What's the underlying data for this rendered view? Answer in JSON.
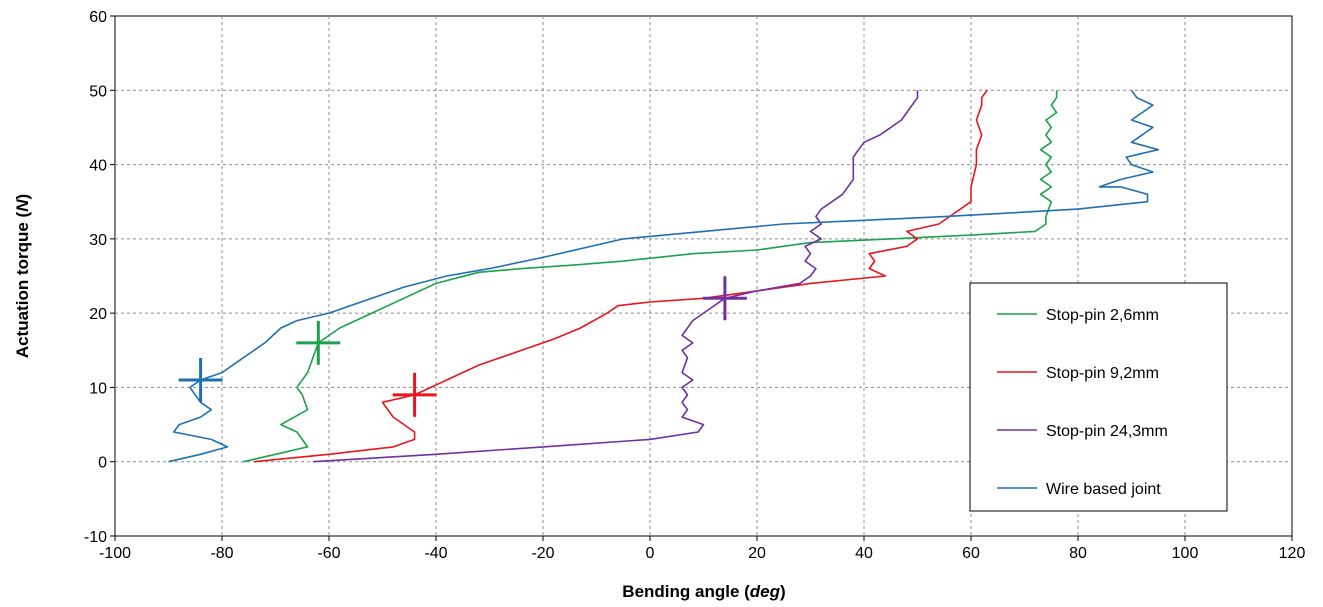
{
  "chart_data": {
    "type": "line",
    "xlabel_main": "Bending angle (",
    "xlabel_unit": "deg",
    "xlabel_close": ")",
    "ylabel_main": "Actuation torque (",
    "ylabel_unit": "N",
    "ylabel_close": ")",
    "xlim": [
      -100,
      120
    ],
    "ylim": [
      -10,
      60
    ],
    "x_ticks": [
      -100,
      -80,
      -60,
      -40,
      -20,
      0,
      20,
      40,
      60,
      80,
      100,
      120
    ],
    "y_ticks": [
      -10,
      0,
      10,
      20,
      30,
      40,
      50,
      60
    ],
    "grid": true,
    "legend_position": "right",
    "series": [
      {
        "name": "Stop-pin 2,6mm",
        "color": "#1aa34a",
        "marker": [
          -62,
          16
        ],
        "points": [
          [
            -76,
            0
          ],
          [
            -70,
            1
          ],
          [
            -64,
            2
          ],
          [
            -66,
            4
          ],
          [
            -69,
            5
          ],
          [
            -64,
            7
          ],
          [
            -65,
            9
          ],
          [
            -66,
            10
          ],
          [
            -64,
            12
          ],
          [
            -63,
            14
          ],
          [
            -62,
            16
          ],
          [
            -58,
            18
          ],
          [
            -52,
            20
          ],
          [
            -46,
            22
          ],
          [
            -40,
            24
          ],
          [
            -32,
            25.5
          ],
          [
            -24,
            26
          ],
          [
            -14,
            26.5
          ],
          [
            -5,
            27
          ],
          [
            8,
            28
          ],
          [
            20,
            28.5
          ],
          [
            30,
            29.5
          ],
          [
            45,
            30
          ],
          [
            60,
            30.5
          ],
          [
            72,
            31
          ],
          [
            74,
            32
          ],
          [
            74,
            33
          ],
          [
            75,
            35
          ],
          [
            73,
            36
          ],
          [
            75,
            37
          ],
          [
            73,
            38
          ],
          [
            75,
            39
          ],
          [
            74,
            40
          ],
          [
            75,
            41
          ],
          [
            73,
            42
          ],
          [
            75,
            43
          ],
          [
            74,
            44
          ],
          [
            75,
            45
          ],
          [
            74,
            46
          ],
          [
            76,
            47
          ],
          [
            75,
            48
          ],
          [
            76,
            49
          ],
          [
            76,
            50
          ]
        ]
      },
      {
        "name": "Stop-pin 9,2mm",
        "color": "#e8161a",
        "marker": [
          -44,
          9
        ],
        "points": [
          [
            -74,
            0
          ],
          [
            -60,
            1
          ],
          [
            -48,
            2
          ],
          [
            -44,
            3
          ],
          [
            -44,
            4
          ],
          [
            -48,
            6
          ],
          [
            -50,
            8
          ],
          [
            -44,
            9
          ],
          [
            -38,
            11
          ],
          [
            -32,
            13
          ],
          [
            -24,
            15
          ],
          [
            -18,
            16.5
          ],
          [
            -13,
            18
          ],
          [
            -8,
            20
          ],
          [
            -6,
            21
          ],
          [
            0,
            21.5
          ],
          [
            10,
            22
          ],
          [
            20,
            23
          ],
          [
            30,
            24
          ],
          [
            44,
            25
          ],
          [
            41,
            26
          ],
          [
            42,
            27
          ],
          [
            41,
            28
          ],
          [
            48,
            29
          ],
          [
            50,
            30
          ],
          [
            48,
            31
          ],
          [
            54,
            32
          ],
          [
            58,
            34
          ],
          [
            60,
            35
          ],
          [
            60,
            37
          ],
          [
            61,
            40
          ],
          [
            61,
            42
          ],
          [
            62,
            44
          ],
          [
            61,
            46
          ],
          [
            62,
            48
          ],
          [
            62,
            49
          ],
          [
            63,
            50
          ]
        ]
      },
      {
        "name": "Stop-pin 24,3mm",
        "color": "#7030a0",
        "marker": [
          14,
          22
        ],
        "points": [
          [
            -63,
            0
          ],
          [
            -40,
            1
          ],
          [
            -20,
            2
          ],
          [
            0,
            3
          ],
          [
            9,
            4
          ],
          [
            10,
            5
          ],
          [
            6,
            6
          ],
          [
            7,
            7
          ],
          [
            6,
            8
          ],
          [
            7,
            9
          ],
          [
            6,
            10
          ],
          [
            8,
            11
          ],
          [
            6,
            12
          ],
          [
            7,
            14
          ],
          [
            6,
            15
          ],
          [
            8,
            16
          ],
          [
            6,
            17
          ],
          [
            8,
            19
          ],
          [
            10,
            20
          ],
          [
            14,
            22
          ],
          [
            20,
            23
          ],
          [
            28,
            24
          ],
          [
            30,
            25
          ],
          [
            31,
            26
          ],
          [
            29,
            27
          ],
          [
            30,
            28
          ],
          [
            29,
            29
          ],
          [
            32,
            30
          ],
          [
            30,
            31
          ],
          [
            32,
            32
          ],
          [
            31,
            33
          ],
          [
            32,
            34
          ],
          [
            34,
            35
          ],
          [
            36,
            36
          ],
          [
            38,
            38
          ],
          [
            38,
            40
          ],
          [
            38,
            41
          ],
          [
            39,
            42
          ],
          [
            40,
            43
          ],
          [
            43,
            44
          ],
          [
            47,
            46
          ],
          [
            49,
            48
          ],
          [
            50,
            49
          ],
          [
            50,
            50
          ]
        ]
      },
      {
        "name": "Wire based joint",
        "color": "#1f6fb4",
        "marker": [
          -84,
          11
        ],
        "points": [
          [
            -90,
            0
          ],
          [
            -84,
            1
          ],
          [
            -79,
            2
          ],
          [
            -82,
            3
          ],
          [
            -89,
            4
          ],
          [
            -88,
            5
          ],
          [
            -84,
            6
          ],
          [
            -82,
            7
          ],
          [
            -84,
            8
          ],
          [
            -86,
            10
          ],
          [
            -84,
            11
          ],
          [
            -80,
            12
          ],
          [
            -76,
            14
          ],
          [
            -72,
            16
          ],
          [
            -69,
            18
          ],
          [
            -66,
            19
          ],
          [
            -60,
            20
          ],
          [
            -52,
            22
          ],
          [
            -46,
            23.5
          ],
          [
            -38,
            25
          ],
          [
            -30,
            26
          ],
          [
            -20,
            27.5
          ],
          [
            -5,
            30
          ],
          [
            10,
            31
          ],
          [
            25,
            32
          ],
          [
            40,
            32.5
          ],
          [
            55,
            33
          ],
          [
            80,
            34
          ],
          [
            93,
            35
          ],
          [
            93,
            36
          ],
          [
            88,
            37
          ],
          [
            84,
            37
          ],
          [
            88,
            38
          ],
          [
            94,
            39
          ],
          [
            90,
            40
          ],
          [
            89,
            41
          ],
          [
            95,
            42
          ],
          [
            90,
            43
          ],
          [
            94,
            45
          ],
          [
            90,
            46
          ],
          [
            94,
            48
          ],
          [
            91,
            49
          ],
          [
            90,
            50
          ]
        ]
      }
    ]
  }
}
